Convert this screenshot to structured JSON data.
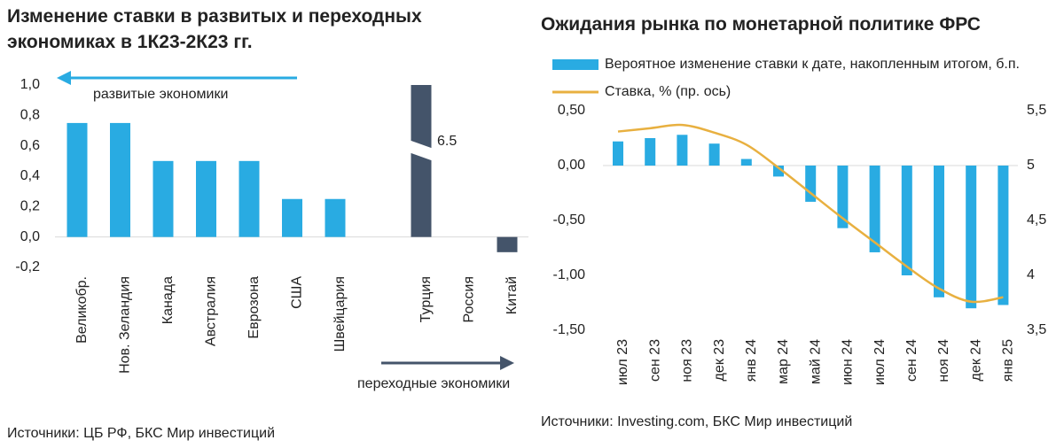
{
  "chart_data": [
    {
      "type": "bar",
      "title": "Изменение ставки в развитых и переходных экономиках в 1К23-2К23 гг.",
      "categories": [
        "Великобр.",
        "Нов. Зеландия",
        "Канада",
        "Австралия",
        "Еврозона",
        "США",
        "Швейцария",
        "Турция",
        "Россия",
        "Китай"
      ],
      "values": [
        0.75,
        0.75,
        0.5,
        0.5,
        0.5,
        0.25,
        0.25,
        6.5,
        0,
        -0.1
      ],
      "value_labels": [
        null,
        null,
        null,
        null,
        null,
        null,
        null,
        "6.5",
        null,
        null
      ],
      "colors": [
        "#29abe2",
        "#29abe2",
        "#29abe2",
        "#29abe2",
        "#29abe2",
        "#29abe2",
        "#29abe2",
        "#44546a",
        "#44546a",
        "#44546a"
      ],
      "ylim": [
        -0.2,
        1.0
      ],
      "yticks": [
        {
          "value": -0.2,
          "label": "-0,2"
        },
        {
          "value": 0,
          "label": "0,0"
        },
        {
          "value": 0.2,
          "label": "0,2"
        },
        {
          "value": 0.4,
          "label": "0,4"
        },
        {
          "value": 0.6,
          "label": "0,6"
        },
        {
          "value": 0.8,
          "label": "0,8"
        },
        {
          "value": 1.0,
          "label": "1,0"
        }
      ],
      "annotations": [
        "развитые экономики",
        "переходные экономики"
      ],
      "source": "Источники: ЦБ РФ, БКС Мир инвестиций"
    },
    {
      "type": "bar-line",
      "title": "Ожидания рынка по монетарной политике ФРС",
      "categories": [
        "июл 23",
        "сен 23",
        "ноя 23",
        "дек 23",
        "янв 24",
        "мар 24",
        "май 24",
        "июн 24",
        "июл 24",
        "сен 24",
        "ноя 24",
        "дек 24",
        "янв 25"
      ],
      "series": [
        {
          "name": "Вероятное изменение ставки к дате, накопленным итогом, б.п.",
          "color": "#29abe2",
          "type": "bar",
          "values": [
            0.22,
            0.25,
            0.28,
            0.2,
            0.06,
            -0.1,
            -0.33,
            -0.57,
            -0.79,
            -1.0,
            -1.2,
            -1.3,
            -1.27
          ]
        },
        {
          "name": "Ставка, % (пр. ось)",
          "color": "#e8b040",
          "type": "line",
          "axis": "y2",
          "values": [
            5.31,
            5.34,
            5.37,
            5.3,
            5.19,
            4.98,
            4.75,
            4.52,
            4.3,
            4.08,
            3.88,
            3.76,
            3.8
          ]
        }
      ],
      "ylim": [
        -1.5,
        0.5
      ],
      "yticks": [
        {
          "value": -1.5,
          "label": "-1,50"
        },
        {
          "value": -1.0,
          "label": "-1,00"
        },
        {
          "value": -0.5,
          "label": "-0,50"
        },
        {
          "value": 0,
          "label": "0,00"
        },
        {
          "value": 0.5,
          "label": "0,50"
        }
      ],
      "y2lim": [
        3.5,
        5.5
      ],
      "y2ticks": [
        {
          "value": 3.5,
          "label": "3,5"
        },
        4,
        {
          "value": 4.5,
          "label": "4,5"
        },
        5,
        {
          "value": 5.5,
          "label": "5,5"
        }
      ],
      "source": "Источники: Investing.com, БКС Мир инвестиций"
    }
  ]
}
